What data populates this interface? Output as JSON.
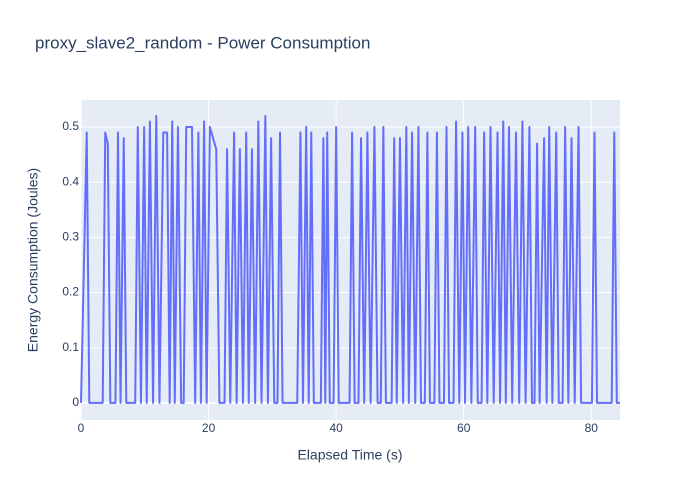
{
  "chart_data": {
    "type": "line",
    "title": "proxy_slave2_random - Power Consumption",
    "x_label": "Elapsed Time (s)",
    "y_label": "Energy Consumption (Joules)",
    "x": [
      0.0,
      0.9,
      1.3,
      3.4,
      3.8,
      4.2,
      4.6,
      5.4,
      5.8,
      6.2,
      6.7,
      7.1,
      8.5,
      8.9,
      9.4,
      9.9,
      10.3,
      10.8,
      11.3,
      11.8,
      12.3,
      12.9,
      13.5,
      13.9,
      14.3,
      14.7,
      15.2,
      15.7,
      16.1,
      16.5,
      17.4,
      17.9,
      18.4,
      18.8,
      19.3,
      19.7,
      20.2,
      21.2,
      21.7,
      22.5,
      22.9,
      23.4,
      24.0,
      24.4,
      24.9,
      25.4,
      25.9,
      26.3,
      26.8,
      27.3,
      27.8,
      28.3,
      28.9,
      29.3,
      29.8,
      30.3,
      30.8,
      31.2,
      31.6,
      33.9,
      34.4,
      34.8,
      35.3,
      35.7,
      36.1,
      36.5,
      37.6,
      38.0,
      38.3,
      38.6,
      39.0,
      39.6,
      40.0,
      40.4,
      42.1,
      42.5,
      42.9,
      43.5,
      43.9,
      44.4,
      44.9,
      45.4,
      46.0,
      46.5,
      47.0,
      47.4,
      47.8,
      48.7,
      49.1,
      49.5,
      50.0,
      50.5,
      51.0,
      51.4,
      51.9,
      52.4,
      52.9,
      53.3,
      53.9,
      54.3,
      54.7,
      55.4,
      55.8,
      56.2,
      56.9,
      57.3,
      57.7,
      58.4,
      58.8,
      59.3,
      59.8,
      60.2,
      60.7,
      61.2,
      61.8,
      62.2,
      62.8,
      63.2,
      63.7,
      64.2,
      64.7,
      65.3,
      65.7,
      66.2,
      66.6,
      67.1,
      67.6,
      68.2,
      68.7,
      69.2,
      69.7,
      70.3,
      70.7,
      71.1,
      71.5,
      71.9,
      72.6,
      73.0,
      73.4,
      73.9,
      74.5,
      74.9,
      75.5,
      75.9,
      76.4,
      76.9,
      77.4,
      78.0,
      78.4,
      80.1,
      80.5,
      80.9,
      83.2,
      83.6,
      84.0,
      84.5
    ],
    "series": [
      {
        "name": "Energy Consumption",
        "color": "#636efa",
        "values": [
          0,
          0.49,
          0,
          0,
          0.49,
          0.47,
          0,
          0,
          0.49,
          0,
          0.48,
          0,
          0,
          0.5,
          0,
          0.5,
          0,
          0.51,
          0,
          0.52,
          0,
          0.49,
          0.49,
          0,
          0.51,
          0,
          0.5,
          0,
          0,
          0.5,
          0.5,
          0,
          0.49,
          0,
          0.51,
          0,
          0.5,
          0.46,
          0,
          0,
          0.46,
          0,
          0.49,
          0,
          0.46,
          0,
          0.49,
          0,
          0.46,
          0,
          0.51,
          0,
          0.52,
          0,
          0.48,
          0,
          0,
          0.49,
          0,
          0,
          0.49,
          0,
          0.5,
          0,
          0.49,
          0,
          0,
          0.48,
          0,
          0.49,
          0,
          0,
          0.5,
          0,
          0,
          0.49,
          0,
          0,
          0.48,
          0,
          0.49,
          0,
          0.5,
          0,
          0,
          0.5,
          0,
          0,
          0.48,
          0,
          0.48,
          0,
          0.5,
          0,
          0.49,
          0,
          0.5,
          0,
          0,
          0.49,
          0,
          0,
          0.49,
          0,
          0,
          0.5,
          0,
          0,
          0.51,
          0,
          0.49,
          0,
          0.5,
          0,
          0.5,
          0,
          0,
          0.49,
          0,
          0.5,
          0,
          0.49,
          0,
          0.51,
          0,
          0.5,
          0,
          0.49,
          0,
          0.51,
          0,
          0.5,
          0,
          0,
          0.47,
          0,
          0.48,
          0,
          0.5,
          0,
          0.49,
          0,
          0,
          0.5,
          0,
          0.48,
          0,
          0.5,
          0,
          0,
          0.49,
          0,
          0,
          0.49,
          0,
          0
        ]
      }
    ],
    "xlim": [
      0,
      84.5
    ],
    "ylim": [
      -0.031,
      0.549
    ],
    "xticks": [
      0,
      20,
      40,
      60,
      80
    ],
    "yticks": [
      0,
      0.1,
      0.2,
      0.3,
      0.4,
      0.5
    ],
    "grid": true
  }
}
